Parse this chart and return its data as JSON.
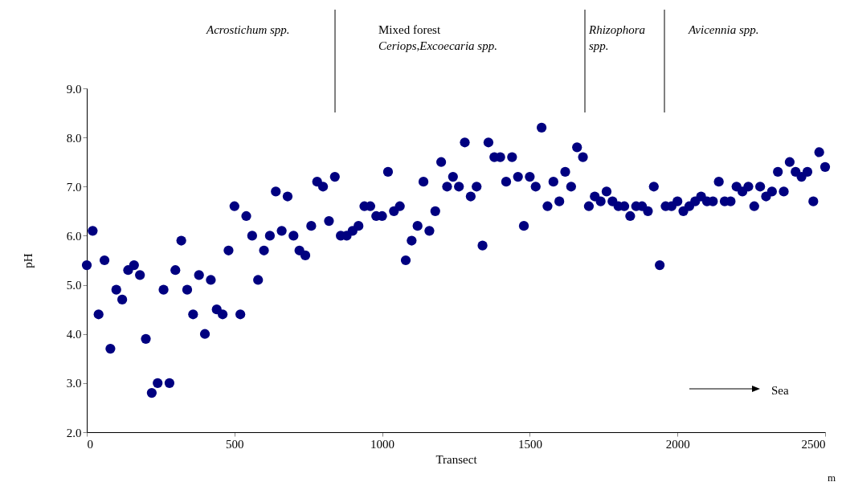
{
  "chart_data": {
    "type": "scatter",
    "xlabel": "Transect",
    "ylabel": "pH",
    "x": [
      0,
      20,
      40,
      60,
      80,
      100,
      120,
      140,
      160,
      180,
      200,
      220,
      240,
      260,
      280,
      300,
      320,
      340,
      360,
      380,
      400,
      420,
      440,
      460,
      480,
      500,
      520,
      540,
      560,
      580,
      600,
      620,
      640,
      660,
      680,
      700,
      720,
      740,
      760,
      780,
      800,
      820,
      840,
      860,
      880,
      900,
      920,
      940,
      960,
      980,
      1000,
      1020,
      1040,
      1060,
      1080,
      1100,
      1120,
      1140,
      1160,
      1180,
      1200,
      1220,
      1240,
      1260,
      1280,
      1300,
      1320,
      1340,
      1360,
      1380,
      1400,
      1420,
      1440,
      1460,
      1480,
      1500,
      1520,
      1540,
      1560,
      1580,
      1600,
      1620,
      1640,
      1660,
      1680,
      1700,
      1720,
      1740,
      1760,
      1780,
      1800,
      1820,
      1840,
      1860,
      1880,
      1900,
      1920,
      1940,
      1960,
      1980,
      2000,
      2020,
      2040,
      2060,
      2080,
      2100,
      2120,
      2140,
      2160,
      2180,
      2200,
      2220,
      2240,
      2260,
      2280,
      2300,
      2320,
      2340,
      2360,
      2380,
      2400,
      2420,
      2440,
      2460,
      2480,
      2500
    ],
    "series": [
      {
        "color": "#000080",
        "values": [
          5.4,
          6.1,
          4.4,
          5.5,
          3.7,
          4.9,
          4.7,
          5.3,
          5.4,
          5.2,
          3.9,
          2.8,
          3.0,
          4.9,
          3.0,
          5.3,
          5.9,
          4.9,
          4.4,
          5.2,
          4.0,
          5.1,
          4.5,
          4.4,
          5.7,
          6.6,
          4.4,
          6.4,
          6.0,
          5.1,
          5.7,
          6.0,
          6.9,
          6.1,
          6.8,
          6.0,
          5.7,
          5.6,
          6.2,
          7.1,
          7.0,
          6.3,
          7.2,
          6.0,
          6.0,
          6.1,
          6.2,
          6.6,
          6.6,
          6.4,
          6.4,
          7.3,
          6.5,
          6.6,
          5.5,
          5.9,
          6.2,
          7.1,
          6.1,
          6.5,
          7.5,
          7.0,
          7.2,
          7.0,
          7.9,
          6.8,
          7.0,
          5.8,
          7.9,
          7.6,
          7.6,
          7.1,
          7.6,
          7.2,
          6.2,
          7.2,
          7.0,
          8.2,
          6.6,
          7.1,
          6.7,
          7.3,
          7.0,
          7.8,
          7.6,
          6.6,
          6.8,
          6.7,
          6.9,
          6.7,
          6.6,
          6.6,
          6.4,
          6.6,
          6.6,
          6.5,
          7.0,
          5.4,
          6.6,
          6.6,
          6.7,
          6.5,
          6.6,
          6.7,
          6.8,
          6.7,
          6.7,
          7.1,
          6.7,
          6.7,
          7.0,
          6.9,
          7.0,
          6.6,
          7.0,
          6.8,
          6.9,
          7.3,
          6.9,
          7.5,
          7.3,
          7.2,
          7.3,
          6.7,
          7.7,
          7.4
        ]
      }
    ],
    "marker": "circle",
    "xlim": [
      0,
      2500
    ],
    "xticks": [
      0,
      500,
      1000,
      1500,
      2000,
      2500
    ],
    "ylim": [
      2,
      9
    ],
    "yticks": [
      {
        "value": 2,
        "label": "2.0"
      },
      {
        "value": 3,
        "label": "3.0"
      },
      {
        "value": 4,
        "label": "4.0"
      },
      {
        "value": 5,
        "label": "5.0"
      },
      {
        "value": 6,
        "label": "6.0"
      },
      {
        "value": 7,
        "label": "7.0"
      },
      {
        "value": 8,
        "label": "8.0"
      },
      {
        "value": 9,
        "label": "9.0"
      }
    ],
    "annotations": [
      "Acrostichum spp.",
      "Mixed forest\nCeriops,Excoecaria spp.",
      "Rhizophora\nspp.",
      "Avicennia spp.",
      "Sea",
      "m"
    ]
  }
}
